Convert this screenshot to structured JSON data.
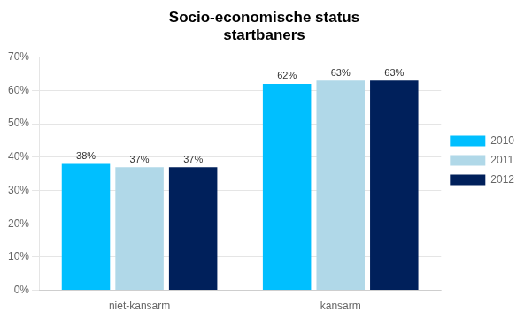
{
  "chart_data": {
    "type": "bar",
    "title": "Socio-economische status\nstartbaners",
    "categories": [
      "niet-kansarm",
      "kansarm"
    ],
    "series": [
      {
        "name": "2010",
        "color": "#00BFFF",
        "values": [
          38,
          62
        ],
        "value_labels": [
          "38%",
          "62%"
        ]
      },
      {
        "name": "2011",
        "color": "#B0D8E8",
        "values": [
          37,
          63
        ],
        "value_labels": [
          "37%",
          "63%"
        ]
      },
      {
        "name": "2012",
        "color": "#00205B",
        "values": [
          37,
          63
        ],
        "value_labels": [
          "37%",
          "63%"
        ]
      }
    ],
    "ylim": [
      0,
      70
    ],
    "yticks": [
      {
        "value": 0,
        "label": "0%"
      },
      {
        "value": 10,
        "label": "10%"
      },
      {
        "value": 20,
        "label": "20%"
      },
      {
        "value": 30,
        "label": "30%"
      },
      {
        "value": 40,
        "label": "40%"
      },
      {
        "value": 50,
        "label": "50%"
      },
      {
        "value": 60,
        "label": "60%"
      },
      {
        "value": 70,
        "label": "70%"
      }
    ],
    "grid": true,
    "legend": "right",
    "data_labels": true
  }
}
